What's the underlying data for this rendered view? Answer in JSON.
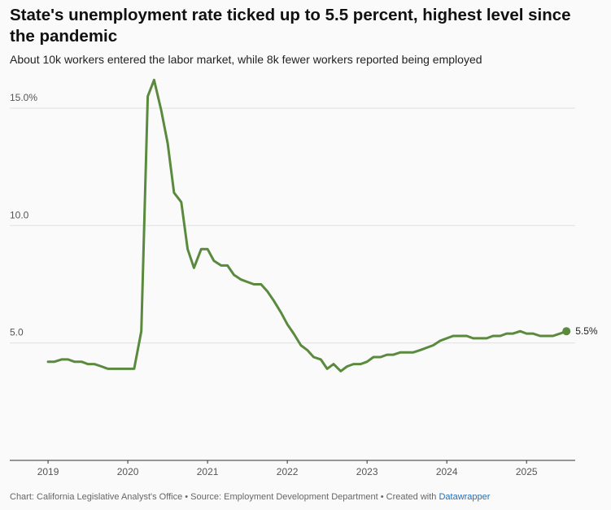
{
  "chart_data": {
    "type": "line",
    "title": "State's unemployment rate ticked up to 5.5 percent, highest level since the pandemic",
    "subtitle": "About 10k workers entered the labor market, while 8k fewer workers reported being employed",
    "source": "Chart: California Legislative Analyst's Office • Source: Employment Development Department • Created with ",
    "credit": "Datawrapper",
    "x": [
      2019,
      2019.08,
      2019.17,
      2019.25,
      2019.33,
      2019.42,
      2019.5,
      2019.58,
      2019.67,
      2019.75,
      2019.83,
      2019.92,
      2020,
      2020.08,
      2020.17,
      2020.25,
      2020.33,
      2020.42,
      2020.5,
      2020.58,
      2020.67,
      2020.75,
      2020.83,
      2020.92,
      2021,
      2021.08,
      2021.17,
      2021.25,
      2021.33,
      2021.42,
      2021.5,
      2021.58,
      2021.67,
      2021.75,
      2021.83,
      2021.92,
      2022,
      2022.08,
      2022.17,
      2022.25,
      2022.33,
      2022.42,
      2022.5,
      2022.58,
      2022.67,
      2022.75,
      2022.83,
      2022.92,
      2023,
      2023.08,
      2023.17,
      2023.25,
      2023.33,
      2023.42,
      2023.5,
      2023.58,
      2023.67,
      2023.75,
      2023.83,
      2023.92,
      2024,
      2024.08,
      2024.17,
      2024.25,
      2024.33,
      2024.42,
      2024.5,
      2024.58,
      2024.67,
      2024.75,
      2024.83,
      2024.92,
      2025,
      2025.08,
      2025.17,
      2025.25,
      2025.33,
      2025.42,
      2025.5
    ],
    "series": [
      {
        "color": "#5a8a3e",
        "values": [
          4.2,
          4.2,
          4.3,
          4.3,
          4.2,
          4.2,
          4.1,
          4.1,
          4.0,
          3.9,
          3.9,
          3.9,
          3.9,
          3.9,
          5.5,
          15.5,
          16.2,
          14.9,
          13.5,
          11.4,
          11.0,
          9.0,
          8.2,
          9.0,
          9.0,
          8.5,
          8.3,
          8.3,
          7.9,
          7.7,
          7.6,
          7.5,
          7.5,
          7.2,
          6.8,
          6.3,
          5.8,
          5.4,
          4.9,
          4.7,
          4.4,
          4.3,
          3.9,
          4.1,
          3.8,
          4.0,
          4.1,
          4.1,
          4.2,
          4.4,
          4.4,
          4.5,
          4.5,
          4.6,
          4.6,
          4.6,
          4.7,
          4.8,
          4.9,
          5.1,
          5.2,
          5.3,
          5.3,
          5.3,
          5.2,
          5.2,
          5.2,
          5.3,
          5.3,
          5.4,
          5.4,
          5.5,
          5.4,
          5.4,
          5.3,
          5.3,
          5.3,
          5.4,
          5.5
        ],
        "value_labels": [
          null,
          null,
          null,
          null,
          null,
          null,
          null,
          null,
          null,
          null,
          null,
          null,
          null,
          null,
          null,
          null,
          null,
          null,
          null,
          null,
          null,
          null,
          null,
          null,
          null,
          null,
          null,
          null,
          null,
          null,
          null,
          null,
          null,
          null,
          null,
          null,
          null,
          null,
          null,
          null,
          null,
          null,
          null,
          null,
          null,
          null,
          null,
          null,
          null,
          null,
          null,
          null,
          null,
          null,
          null,
          null,
          null,
          null,
          null,
          null,
          null,
          null,
          null,
          null,
          null,
          null,
          null,
          null,
          null,
          null,
          null,
          null,
          null,
          null,
          null,
          null,
          null,
          null,
          "5.5%"
        ]
      }
    ],
    "xlim": [
      2018.52,
      2025.61
    ],
    "xticks": [
      2019,
      2020,
      2021,
      2022,
      2023,
      2024,
      2025
    ],
    "ylim": [
      0,
      17
    ],
    "yticks": [
      {
        "value": 5,
        "label": "5.0"
      },
      {
        "value": 10,
        "label": "10.0"
      },
      {
        "value": 15,
        "label": "15.0%"
      }
    ],
    "grid": true
  }
}
